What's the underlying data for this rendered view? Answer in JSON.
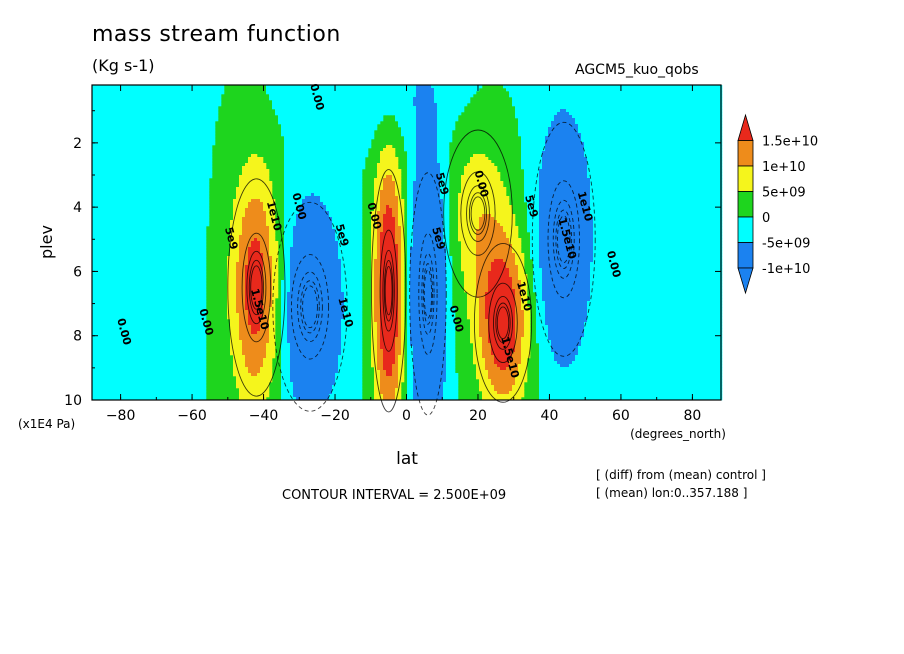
{
  "header": {
    "title": "mass stream function",
    "units": "(Kg s-1)",
    "model": "AGCM5_kuo_qobs"
  },
  "footer": {
    "interval": "CONTOUR INTERVAL = 2.500E+09",
    "note1": "[ (diff) from (mean) control ]",
    "note2": "[ (mean) lon:0..357.188 ]"
  },
  "colors": {
    "red": "#e8291c",
    "orange": "#ee8c1b",
    "yellow": "#f5f51c",
    "green": "#1ed51e",
    "cyan": "#00ffff",
    "blue": "#1b82f0"
  },
  "chart_data": {
    "type": "heatmap",
    "title": "mass stream function",
    "units": "(Kg s-1)",
    "xlabel": "lat",
    "xunits": "(degrees_north)",
    "ylabel": "plev",
    "yunits": "(x1E4 Pa)",
    "xlim": [
      -88,
      88
    ],
    "ylim": [
      10,
      0.2
    ],
    "xticks": [
      -80,
      -60,
      -40,
      -20,
      0,
      20,
      40,
      60,
      80
    ],
    "yticks": [
      2,
      4,
      6,
      8,
      10
    ],
    "contour_interval": 2500000000,
    "colorbar": {
      "labels": [
        "1.5e+10",
        "1e+10",
        "5e+09",
        "0",
        "-5e+09",
        "-1e+10"
      ],
      "levels": [
        15000000000,
        10000000000,
        5000000000,
        0,
        -5000000000,
        -10000000000
      ]
    },
    "cells": [
      {
        "lat": -42,
        "plev": 6.5,
        "sign": "positive",
        "peak": 15000000000.0
      },
      {
        "lat": -27,
        "plev": 7.0,
        "sign": "negative",
        "peak": -10000000000.0
      },
      {
        "lat": -5,
        "plev": 6.5,
        "sign": "positive",
        "peak": 15000000000.0
      },
      {
        "lat": 6,
        "plev": 6.5,
        "sign": "negative",
        "peak": -15000000000.0
      },
      {
        "lat": 27,
        "plev": 7.5,
        "sign": "positive",
        "peak": 15000000000.0
      },
      {
        "lat": 44,
        "plev": 5.0,
        "sign": "negative",
        "peak": -10000000000.0
      }
    ],
    "contour_labels": [
      {
        "text": "0.00",
        "lat": -80,
        "plev": 7.9
      },
      {
        "text": "0.00",
        "lat": -57,
        "plev": 7.6
      },
      {
        "text": "5e9",
        "lat": -50,
        "plev": 5.0
      },
      {
        "text": "1e10",
        "lat": -38,
        "plev": 4.3
      },
      {
        "text": "1.5e10",
        "lat": -42,
        "plev": 7.2
      },
      {
        "text": "0.00",
        "lat": -31,
        "plev": 4.0
      },
      {
        "text": "5e9",
        "lat": -19,
        "plev": 4.9
      },
      {
        "text": "1e10",
        "lat": -18,
        "plev": 7.3
      },
      {
        "text": "0.00",
        "lat": -10,
        "plev": 4.3
      },
      {
        "text": "0.00",
        "lat": -26,
        "plev": 0.6
      },
      {
        "text": "5e9",
        "lat": 9,
        "plev": 3.3
      },
      {
        "text": "5e9",
        "lat": 8,
        "plev": 5.0
      },
      {
        "text": "0.00",
        "lat": 20,
        "plev": 3.3
      },
      {
        "text": "5e9",
        "lat": 34,
        "plev": 4.0
      },
      {
        "text": "1e10",
        "lat": 32,
        "plev": 6.8
      },
      {
        "text": "1.5e10",
        "lat": 28,
        "plev": 8.7
      },
      {
        "text": "1e10",
        "lat": 49,
        "plev": 4.0
      },
      {
        "text": "1.5e10",
        "lat": 44,
        "plev": 5.0
      },
      {
        "text": "0.00",
        "lat": 57,
        "plev": 5.8
      },
      {
        "text": "0.00",
        "lat": 13,
        "plev": 7.5
      }
    ]
  }
}
